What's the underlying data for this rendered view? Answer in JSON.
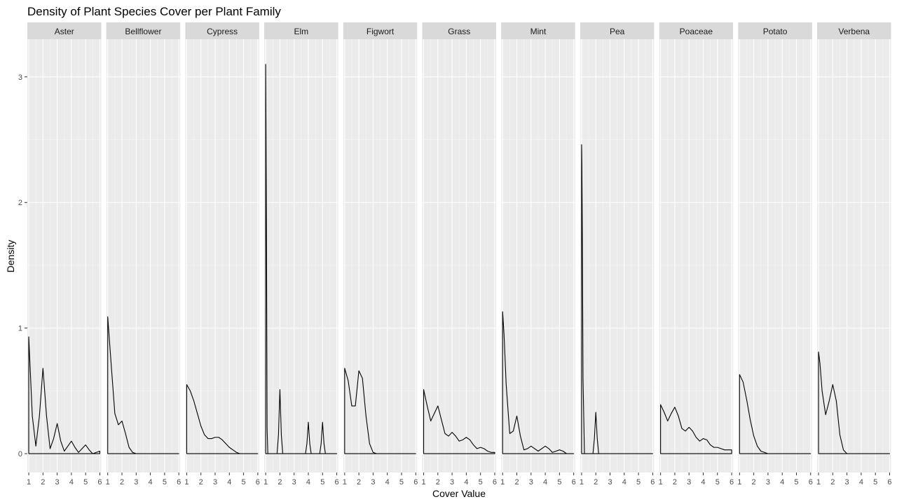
{
  "chart_data": {
    "type": "area",
    "title": "Density of Plant Species Cover per Plant Family",
    "xlabel": "Cover Value",
    "ylabel": "Density",
    "xlim": [
      0.9,
      6.1
    ],
    "ylim": [
      -0.15,
      3.3
    ],
    "x_ticks": [
      "1",
      "2",
      "3",
      "4",
      "5",
      "6"
    ],
    "y_ticks": [
      "0",
      "1",
      "2",
      "3"
    ],
    "grid": true,
    "panel_background": "#ebebeb",
    "strip_background": "#d9d9d9",
    "line_color": "#000000",
    "facets": [
      {
        "name": "Aster",
        "x": [
          1.0,
          1.25,
          1.5,
          1.75,
          2.0,
          2.25,
          2.5,
          2.75,
          3.0,
          3.25,
          3.5,
          3.75,
          4.0,
          4.25,
          4.5,
          4.75,
          5.0,
          5.25,
          5.5,
          5.75,
          6.0
        ],
        "y": [
          0.93,
          0.3,
          0.06,
          0.3,
          0.68,
          0.3,
          0.04,
          0.12,
          0.24,
          0.1,
          0.02,
          0.06,
          0.1,
          0.05,
          0.01,
          0.04,
          0.07,
          0.03,
          0.0,
          0.01,
          0.02
        ]
      },
      {
        "name": "Bellflower",
        "x": [
          1.0,
          1.25,
          1.5,
          1.75,
          2.0,
          2.25,
          2.5,
          2.75,
          3.0,
          3.5,
          4.0,
          5.0,
          6.0
        ],
        "y": [
          1.09,
          0.7,
          0.32,
          0.23,
          0.26,
          0.16,
          0.05,
          0.01,
          0.0,
          0.0,
          0.0,
          0.0,
          0.0
        ]
      },
      {
        "name": "Cypress",
        "x": [
          1.0,
          1.25,
          1.5,
          1.75,
          2.0,
          2.25,
          2.5,
          2.75,
          3.0,
          3.25,
          3.5,
          3.75,
          4.0,
          4.25,
          4.5,
          4.75,
          5.0,
          5.5,
          6.0
        ],
        "y": [
          0.55,
          0.5,
          0.42,
          0.32,
          0.22,
          0.15,
          0.12,
          0.12,
          0.13,
          0.13,
          0.11,
          0.08,
          0.05,
          0.03,
          0.01,
          0.0,
          0.0,
          0.0,
          0.0
        ]
      },
      {
        "name": "Elm",
        "x": [
          1.0,
          1.02,
          1.06,
          1.1,
          1.15,
          1.4,
          1.8,
          1.9,
          2.0,
          2.1,
          2.2,
          2.5,
          3.5,
          3.8,
          3.9,
          4.0,
          4.1,
          4.2,
          4.5,
          4.8,
          4.9,
          5.0,
          5.1,
          5.2,
          5.5,
          6.0
        ],
        "y": [
          3.1,
          2.65,
          1.6,
          0.2,
          0.0,
          0.0,
          0.0,
          0.15,
          0.51,
          0.15,
          0.0,
          0.0,
          0.0,
          0.0,
          0.08,
          0.25,
          0.08,
          0.0,
          0.0,
          0.0,
          0.08,
          0.25,
          0.08,
          0.0,
          0.0,
          0.0
        ]
      },
      {
        "name": "Figwort",
        "x": [
          1.0,
          1.25,
          1.5,
          1.75,
          2.0,
          2.25,
          2.5,
          2.75,
          3.0,
          3.25,
          3.5,
          4.0,
          5.0,
          6.0
        ],
        "y": [
          0.68,
          0.58,
          0.38,
          0.38,
          0.66,
          0.6,
          0.3,
          0.08,
          0.01,
          0.0,
          0.0,
          0.0,
          0.0,
          0.0
        ]
      },
      {
        "name": "Grass",
        "x": [
          1.0,
          1.25,
          1.5,
          1.75,
          2.0,
          2.25,
          2.5,
          2.75,
          3.0,
          3.25,
          3.5,
          3.75,
          4.0,
          4.25,
          4.5,
          4.75,
          5.0,
          5.25,
          5.5,
          5.75,
          6.0
        ],
        "y": [
          0.51,
          0.38,
          0.26,
          0.32,
          0.38,
          0.27,
          0.16,
          0.14,
          0.17,
          0.14,
          0.1,
          0.11,
          0.13,
          0.11,
          0.07,
          0.04,
          0.05,
          0.04,
          0.02,
          0.01,
          0.01
        ]
      },
      {
        "name": "Mint",
        "x": [
          1.0,
          1.1,
          1.25,
          1.5,
          1.75,
          2.0,
          2.25,
          2.5,
          2.75,
          3.0,
          3.25,
          3.5,
          3.75,
          4.0,
          4.25,
          4.5,
          4.75,
          5.0,
          5.25,
          5.5,
          6.0
        ],
        "y": [
          1.13,
          0.95,
          0.55,
          0.16,
          0.18,
          0.3,
          0.14,
          0.03,
          0.04,
          0.06,
          0.04,
          0.02,
          0.04,
          0.06,
          0.04,
          0.01,
          0.02,
          0.03,
          0.02,
          0.0,
          0.0
        ]
      },
      {
        "name": "Pea",
        "x": [
          1.0,
          1.02,
          1.05,
          1.1,
          1.2,
          1.4,
          1.6,
          1.8,
          1.9,
          2.0,
          2.1,
          2.2,
          2.4,
          3.0,
          4.0,
          5.0,
          6.0
        ],
        "y": [
          2.46,
          2.3,
          1.8,
          0.6,
          0.0,
          0.0,
          0.0,
          0.0,
          0.12,
          0.33,
          0.12,
          0.0,
          0.0,
          0.0,
          0.0,
          0.0,
          0.0
        ]
      },
      {
        "name": "Poaceae",
        "x": [
          1.0,
          1.25,
          1.5,
          1.75,
          2.0,
          2.25,
          2.5,
          2.75,
          3.0,
          3.25,
          3.5,
          3.75,
          4.0,
          4.25,
          4.5,
          4.75,
          5.0,
          5.25,
          5.5,
          5.75,
          6.0
        ],
        "y": [
          0.39,
          0.33,
          0.26,
          0.32,
          0.37,
          0.3,
          0.2,
          0.18,
          0.21,
          0.18,
          0.13,
          0.1,
          0.12,
          0.11,
          0.07,
          0.05,
          0.05,
          0.04,
          0.03,
          0.03,
          0.03
        ]
      },
      {
        "name": "Potato",
        "x": [
          1.0,
          1.25,
          1.5,
          1.75,
          2.0,
          2.25,
          2.5,
          2.75,
          3.0,
          3.25,
          3.5,
          4.0,
          5.0,
          6.0
        ],
        "y": [
          0.63,
          0.57,
          0.43,
          0.27,
          0.14,
          0.06,
          0.02,
          0.01,
          0.0,
          0.0,
          0.0,
          0.0,
          0.0,
          0.0
        ]
      },
      {
        "name": "Verbena",
        "x": [
          1.0,
          1.1,
          1.25,
          1.5,
          1.75,
          2.0,
          2.25,
          2.5,
          2.75,
          3.0,
          3.25,
          3.5,
          4.0,
          5.0,
          6.0
        ],
        "y": [
          0.81,
          0.72,
          0.5,
          0.31,
          0.42,
          0.55,
          0.42,
          0.15,
          0.03,
          0.0,
          0.0,
          0.0,
          0.0,
          0.0,
          0.0
        ]
      }
    ]
  }
}
